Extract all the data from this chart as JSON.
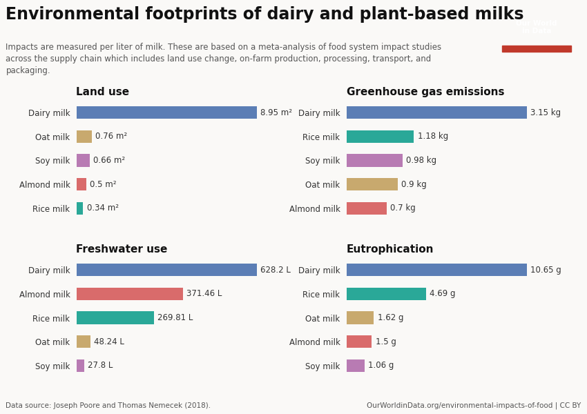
{
  "title": "Environmental footprints of dairy and plant-based milks",
  "subtitle": "Impacts are measured per liter of milk. These are based on a meta-analysis of food system impact studies\nacross the supply chain which includes land use change, on-farm production, processing, transport, and\npackaging.",
  "datasource": "Data source: Joseph Poore and Thomas Nemecek (2018).",
  "url": "OurWorldinData.org/environmental-impacts-of-food | CC BY",
  "logo_text": "Our World\nin Data",
  "logo_bg": "#1a3a5c",
  "logo_red": "#c0392b",
  "land_use": {
    "title": "Land use",
    "labels": [
      "Dairy milk",
      "Oat milk",
      "Soy milk",
      "Almond milk",
      "Rice milk"
    ],
    "values": [
      8.95,
      0.76,
      0.66,
      0.5,
      0.34
    ],
    "unit": "m²",
    "colors": [
      "#5b7eb5",
      "#c8a96e",
      "#b87bb3",
      "#d96b6b",
      "#2aa898"
    ]
  },
  "ghg": {
    "title": "Greenhouse gas emissions",
    "labels": [
      "Dairy milk",
      "Rice milk",
      "Soy milk",
      "Oat milk",
      "Almond milk"
    ],
    "values": [
      3.15,
      1.18,
      0.98,
      0.9,
      0.7
    ],
    "unit": "kg",
    "colors": [
      "#5b7eb5",
      "#2aa898",
      "#b87bb3",
      "#c8a96e",
      "#d96b6b"
    ]
  },
  "freshwater": {
    "title": "Freshwater use",
    "labels": [
      "Dairy milk",
      "Almond milk",
      "Rice milk",
      "Oat milk",
      "Soy milk"
    ],
    "values": [
      628.2,
      371.46,
      269.81,
      48.24,
      27.8
    ],
    "unit": "L",
    "colors": [
      "#5b7eb5",
      "#d96b6b",
      "#2aa898",
      "#c8a96e",
      "#b87bb3"
    ]
  },
  "eutro": {
    "title": "Eutrophication",
    "labels": [
      "Dairy milk",
      "Rice milk",
      "Oat milk",
      "Almond milk",
      "Soy milk"
    ],
    "values": [
      10.65,
      4.69,
      1.62,
      1.5,
      1.06
    ],
    "unit": "g",
    "colors": [
      "#5b7eb5",
      "#2aa898",
      "#c8a96e",
      "#d96b6b",
      "#b87bb3"
    ]
  },
  "bg_color": "#faf9f7",
  "title_fontsize": 17,
  "subtitle_fontsize": 8.5,
  "section_title_fontsize": 11,
  "label_fontsize": 8.5,
  "value_fontsize": 8.5
}
